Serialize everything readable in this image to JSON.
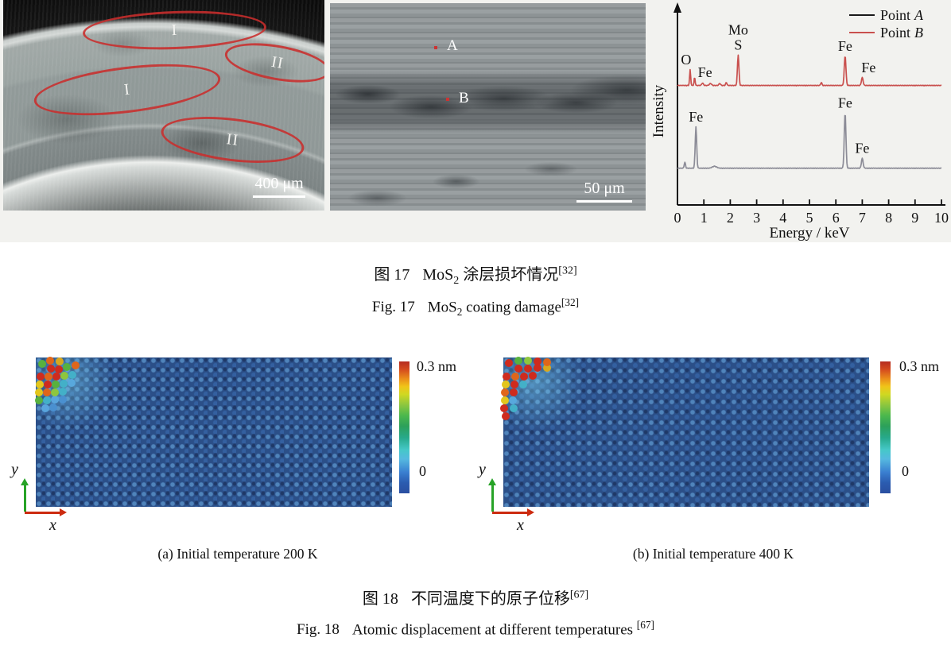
{
  "figure17": {
    "sem1": {
      "regions": [
        {
          "label": "I"
        },
        {
          "label": "II"
        },
        {
          "label": "I"
        },
        {
          "label": "II"
        }
      ],
      "scale_bar": "400 μm"
    },
    "sem2": {
      "points": [
        {
          "label": "A"
        },
        {
          "label": "B"
        }
      ],
      "scale_bar": "50 μm"
    },
    "caption_zh": {
      "label": "图 17",
      "pre": "MoS",
      "sub": "2",
      "post": " 涂层损坏情况",
      "ref": "[32]"
    },
    "caption_en": {
      "label": "Fig. 17",
      "pre": "MoS",
      "sub": "2",
      "post": " coating damage",
      "ref": "[32]"
    }
  },
  "figure18": {
    "panels": [
      {
        "caption": "(a) Initial temperature 200 K",
        "colorbar_max": "0.3 nm",
        "colorbar_min": "0",
        "axis_x": "x",
        "axis_y": "y"
      },
      {
        "caption": "(b) Initial temperature 400 K",
        "colorbar_max": "0.3 nm",
        "colorbar_min": "0",
        "axis_x": "x",
        "axis_y": "y"
      }
    ],
    "caption_zh": {
      "label": "图 18",
      "text": "不同温度下的原子位移",
      "ref": "[67]"
    },
    "caption_en": {
      "label": "Fig. 18",
      "text": "Atomic displacement at different temperatures ",
      "ref": "[67]"
    }
  },
  "chart_data": {
    "type": "line",
    "title": "EDS spectra of point A and point B",
    "xlabel": "Energy / keV",
    "ylabel": "Intensity",
    "xlim": [
      0,
      10
    ],
    "x_ticks": [
      0,
      1,
      2,
      3,
      4,
      5,
      6,
      7,
      8,
      9,
      10
    ],
    "grid": false,
    "legend_position": "top-right",
    "legend": [
      {
        "label": "Point",
        "item": "A",
        "color": "#1a1a1a"
      },
      {
        "label": "Point",
        "item": "B",
        "color": "#c9504e"
      }
    ],
    "series": [
      {
        "name": "Point A",
        "color": "#8c8c97",
        "baseline": 18.5,
        "peaks": [
          {
            "x": 0.28,
            "h": 3,
            "w": 0.06
          },
          {
            "x": 0.7,
            "h": 21,
            "w": 0.07,
            "label": "Fe"
          },
          {
            "x": 1.4,
            "h": 1,
            "w": 0.2
          },
          {
            "x": 6.35,
            "h": 28,
            "w": 0.08,
            "label": "Fe"
          },
          {
            "x": 7.0,
            "h": 5,
            "w": 0.08,
            "label": "Fe"
          }
        ]
      },
      {
        "name": "Point B",
        "color": "#c9504e",
        "baseline": 60.5,
        "peaks": [
          {
            "x": 0.48,
            "h": 8,
            "w": 0.05,
            "label": "O",
            "dx": -5
          },
          {
            "x": 0.65,
            "h": 4,
            "w": 0.05,
            "label": "Fe",
            "dx": 13,
            "dy": 6
          },
          {
            "x": 0.95,
            "h": 1.2,
            "w": 0.08
          },
          {
            "x": 1.25,
            "h": 1,
            "w": 0.1
          },
          {
            "x": 1.6,
            "h": 1,
            "w": 0.08
          },
          {
            "x": 1.85,
            "h": 1.5,
            "w": 0.06
          },
          {
            "x": 2.3,
            "h": 15.5,
            "w": 0.07,
            "label": "Mo S"
          },
          {
            "x": 5.45,
            "h": 1.5,
            "w": 0.06
          },
          {
            "x": 6.35,
            "h": 15,
            "w": 0.08,
            "label": "Fe"
          },
          {
            "x": 7.0,
            "h": 4,
            "w": 0.08,
            "label": "Fe",
            "dx": 8
          }
        ]
      }
    ]
  }
}
